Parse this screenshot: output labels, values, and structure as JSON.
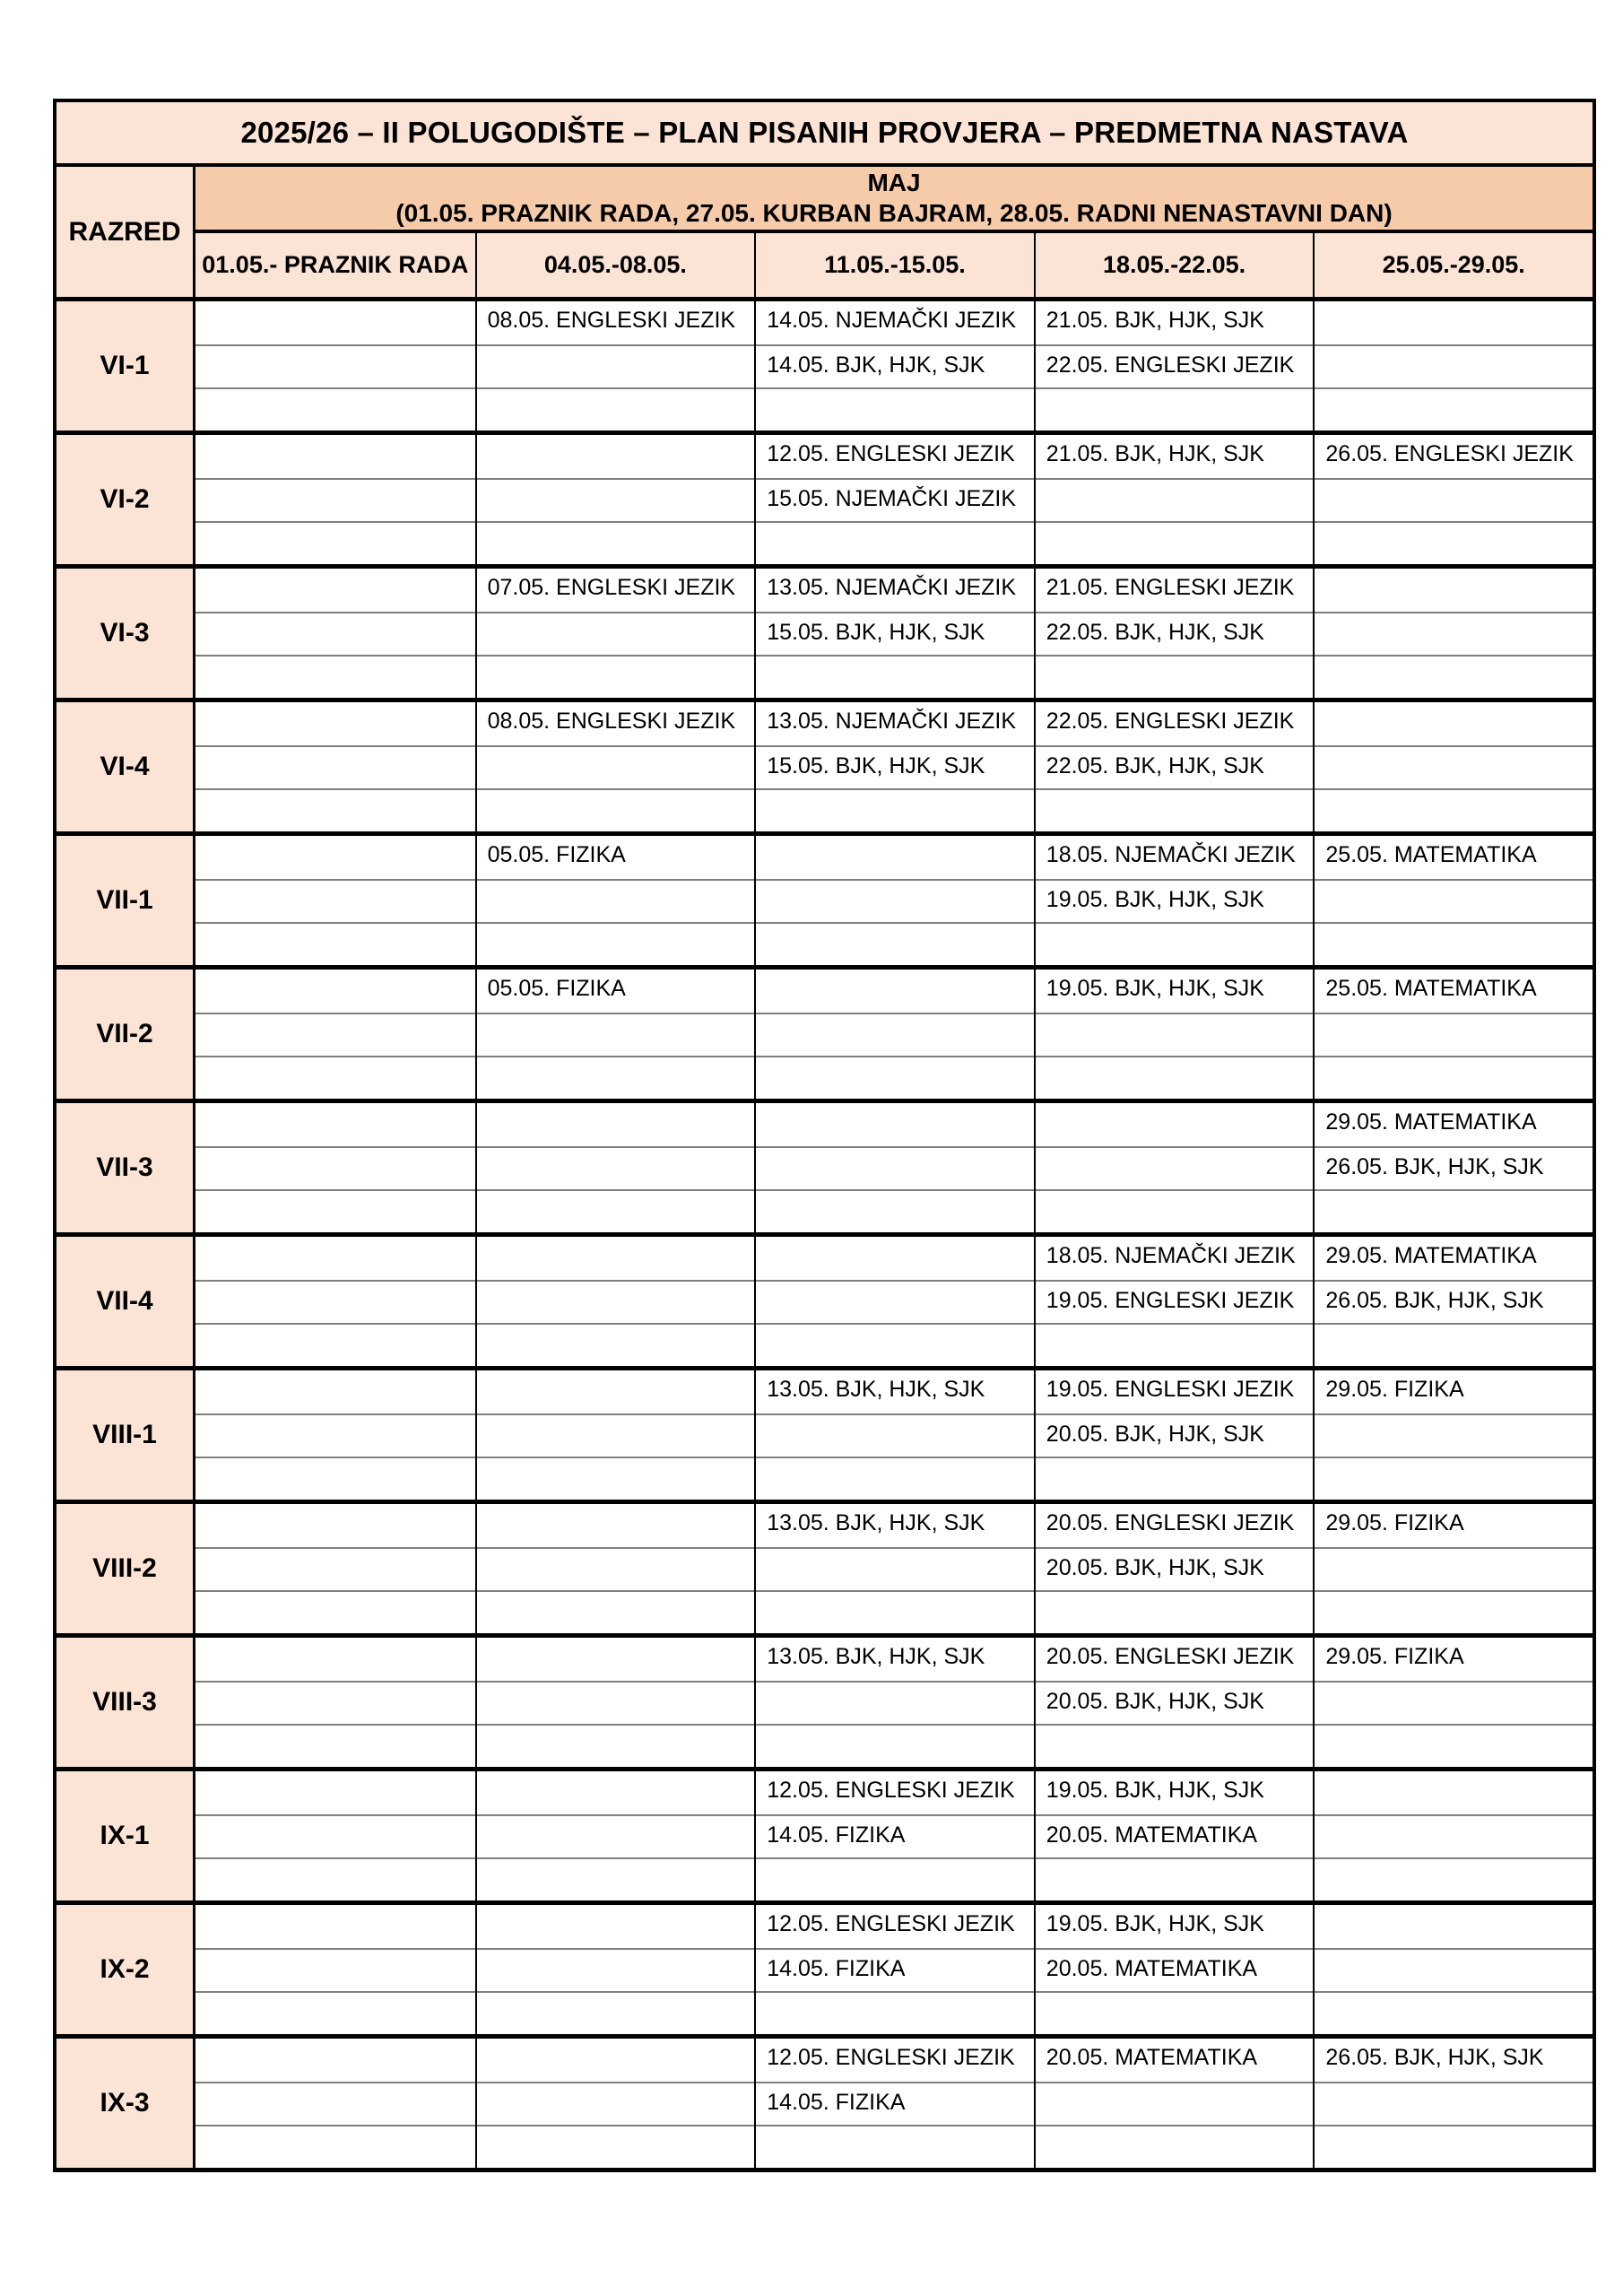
{
  "title": "2025/26 – II POLUGODIŠTE – PLAN PISANIH PROVJERA – PREDMETNA NASTAVA",
  "header": {
    "razred_label": "RAZRED",
    "month_label": "MAJ",
    "month_note": "(01.05. PRAZNIK RADA, 27.05. KURBAN BAJRAM, 28.05. RADNI NENASTAVNI DAN)",
    "week_columns": [
      "01.05.- PRAZNIK RADA",
      "04.05.-08.05.",
      "11.05.-15.05.",
      "18.05.-22.05.",
      "25.05.-29.05."
    ]
  },
  "colors": {
    "light_peach": "#fbe4d5",
    "dark_peach": "#f6cbaa",
    "grid_black": "#000000",
    "subrow_gray": "#808080"
  },
  "classes": [
    {
      "label": "VI-1",
      "cells": [
        [
          "",
          "",
          ""
        ],
        [
          "08.05. ENGLESKI JEZIK",
          "",
          ""
        ],
        [
          "14.05. NJEMAČKI JEZIK",
          "14.05. BJK, HJK, SJK",
          ""
        ],
        [
          "21.05. BJK, HJK, SJK",
          "22.05. ENGLESKI JEZIK",
          ""
        ],
        [
          "",
          "",
          ""
        ]
      ]
    },
    {
      "label": "VI-2",
      "cells": [
        [
          "",
          "",
          ""
        ],
        [
          "",
          "",
          ""
        ],
        [
          "12.05. ENGLESKI JEZIK",
          "15.05. NJEMAČKI JEZIK",
          ""
        ],
        [
          "21.05. BJK, HJK, SJK",
          "",
          ""
        ],
        [
          "26.05. ENGLESKI JEZIK",
          "",
          ""
        ]
      ]
    },
    {
      "label": "VI-3",
      "cells": [
        [
          "",
          "",
          ""
        ],
        [
          "07.05. ENGLESKI JEZIK",
          "",
          ""
        ],
        [
          "13.05. NJEMAČKI JEZIK",
          "15.05. BJK, HJK, SJK",
          ""
        ],
        [
          "21.05. ENGLESKI JEZIK",
          "22.05. BJK, HJK, SJK",
          ""
        ],
        [
          "",
          "",
          ""
        ]
      ]
    },
    {
      "label": "VI-4",
      "cells": [
        [
          "",
          "",
          ""
        ],
        [
          "08.05. ENGLESKI JEZIK",
          "",
          ""
        ],
        [
          "13.05. NJEMAČKI JEZIK",
          "15.05. BJK, HJK, SJK",
          ""
        ],
        [
          "22.05. ENGLESKI JEZIK",
          "22.05. BJK, HJK, SJK",
          ""
        ],
        [
          "",
          "",
          ""
        ]
      ]
    },
    {
      "label": "VII-1",
      "cells": [
        [
          "",
          "",
          ""
        ],
        [
          "05.05. FIZIKA",
          "",
          ""
        ],
        [
          "",
          "",
          ""
        ],
        [
          "18.05. NJEMAČKI JEZIK",
          "19.05. BJK, HJK, SJK",
          ""
        ],
        [
          "25.05. MATEMATIKA",
          "",
          ""
        ]
      ]
    },
    {
      "label": "VII-2",
      "cells": [
        [
          "",
          "",
          ""
        ],
        [
          "05.05. FIZIKA",
          "",
          ""
        ],
        [
          "",
          "",
          ""
        ],
        [
          "19.05. BJK, HJK, SJK",
          "",
          ""
        ],
        [
          "25.05. MATEMATIKA",
          "",
          ""
        ]
      ]
    },
    {
      "label": "VII-3",
      "cells": [
        [
          "",
          "",
          ""
        ],
        [
          "",
          "",
          ""
        ],
        [
          "",
          "",
          ""
        ],
        [
          "",
          "",
          ""
        ],
        [
          "29.05. MATEMATIKA",
          "26.05. BJK, HJK, SJK",
          ""
        ]
      ]
    },
    {
      "label": "VII-4",
      "cells": [
        [
          "",
          "",
          ""
        ],
        [
          "",
          "",
          ""
        ],
        [
          "",
          "",
          ""
        ],
        [
          "18.05. NJEMAČKI JEZIK",
          "19.05. ENGLESKI JEZIK",
          ""
        ],
        [
          "29.05. MATEMATIKA",
          "26.05. BJK, HJK, SJK",
          ""
        ]
      ]
    },
    {
      "label": "VIII-1",
      "cells": [
        [
          "",
          "",
          ""
        ],
        [
          "",
          "",
          ""
        ],
        [
          "13.05. BJK, HJK, SJK",
          "",
          ""
        ],
        [
          "19.05. ENGLESKI JEZIK",
          "20.05. BJK, HJK, SJK",
          ""
        ],
        [
          "29.05. FIZIKA",
          "",
          ""
        ]
      ]
    },
    {
      "label": "VIII-2",
      "cells": [
        [
          "",
          "",
          ""
        ],
        [
          "",
          "",
          ""
        ],
        [
          "13.05. BJK, HJK, SJK",
          "",
          ""
        ],
        [
          "20.05. ENGLESKI JEZIK",
          "20.05. BJK, HJK, SJK",
          ""
        ],
        [
          "29.05. FIZIKA",
          "",
          ""
        ]
      ]
    },
    {
      "label": "VIII-3",
      "cells": [
        [
          "",
          "",
          ""
        ],
        [
          "",
          "",
          ""
        ],
        [
          "13.05. BJK, HJK, SJK",
          "",
          ""
        ],
        [
          "20.05. ENGLESKI JEZIK",
          "20.05. BJK, HJK, SJK",
          ""
        ],
        [
          "29.05. FIZIKA",
          "",
          ""
        ]
      ]
    },
    {
      "label": "IX-1",
      "cells": [
        [
          "",
          "",
          ""
        ],
        [
          "",
          "",
          ""
        ],
        [
          "12.05. ENGLESKI JEZIK",
          "14.05. FIZIKA",
          ""
        ],
        [
          "19.05. BJK, HJK, SJK",
          "20.05. MATEMATIKA",
          ""
        ],
        [
          "",
          "",
          ""
        ]
      ]
    },
    {
      "label": "IX-2",
      "cells": [
        [
          "",
          "",
          ""
        ],
        [
          "",
          "",
          ""
        ],
        [
          "12.05. ENGLESKI JEZIK",
          "14.05. FIZIKA",
          ""
        ],
        [
          "19.05. BJK, HJK, SJK",
          "20.05. MATEMATIKA",
          ""
        ],
        [
          "",
          "",
          ""
        ]
      ]
    },
    {
      "label": "IX-3",
      "cells": [
        [
          "",
          "",
          ""
        ],
        [
          "",
          "",
          ""
        ],
        [
          "12.05. ENGLESKI JEZIK",
          "14.05. FIZIKA",
          ""
        ],
        [
          "20.05. MATEMATIKA",
          "",
          ""
        ],
        [
          "26.05. BJK, HJK, SJK",
          "",
          ""
        ]
      ]
    }
  ]
}
